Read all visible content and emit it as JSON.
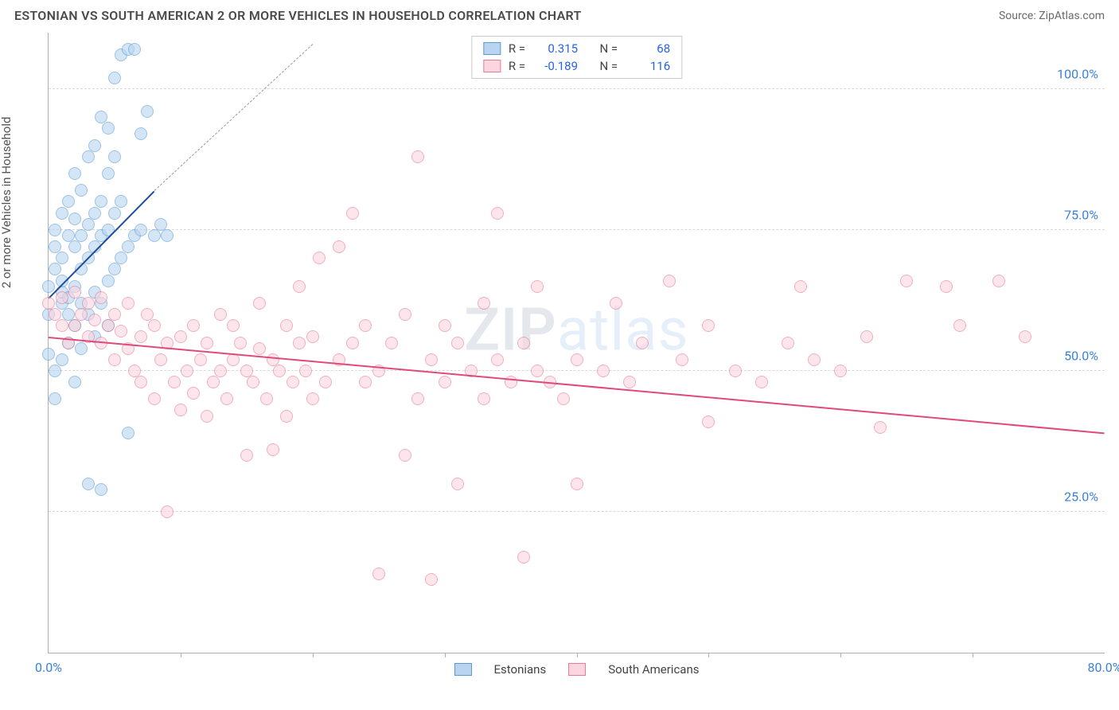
{
  "header": {
    "title": "ESTONIAN VS SOUTH AMERICAN 2 OR MORE VEHICLES IN HOUSEHOLD CORRELATION CHART",
    "source": "Source: ZipAtlas.com"
  },
  "chart": {
    "type": "scatter",
    "y_axis_label": "2 or more Vehicles in Household",
    "background_color": "#ffffff",
    "grid_color": "#d8d8d8",
    "axis_color": "#b0b0b0",
    "tick_label_color": "#3b82d6",
    "tick_fontsize": 16,
    "axis_label_fontsize": 15,
    "xlim": [
      0,
      80
    ],
    "ylim": [
      0,
      110
    ],
    "y_ticks": [
      25,
      50,
      75,
      100
    ],
    "y_tick_labels": [
      "25.0%",
      "50.0%",
      "75.0%",
      "100.0%"
    ],
    "x_ticks_minor": [
      10,
      20,
      30,
      40,
      50,
      60,
      70
    ],
    "x_tick_labels": [
      {
        "x": 0,
        "label": "0.0%"
      },
      {
        "x": 80,
        "label": "80.0%"
      }
    ],
    "watermark": {
      "text_a": "ZIP",
      "text_b": "atlas",
      "opacity": 0.12,
      "fontsize": 74
    },
    "series": [
      {
        "name": "Estonians",
        "color_fill": "#b8d4f0",
        "color_stroke": "#5a9bd5",
        "fill_opacity": 0.6,
        "marker_radius": 8,
        "R": "0.315",
        "N": "68",
        "trend": {
          "x1": 0,
          "y1": 63,
          "x2": 8,
          "y2": 82,
          "color": "#1f4e9c",
          "width": 2.2
        },
        "trend_extrapolate": {
          "x1": 8,
          "y1": 82,
          "x2": 20,
          "y2": 108
        },
        "points": [
          [
            0,
            53
          ],
          [
            0,
            60
          ],
          [
            0,
            65
          ],
          [
            0.5,
            68
          ],
          [
            0.5,
            72
          ],
          [
            0.5,
            75
          ],
          [
            0.5,
            50
          ],
          [
            1,
            62
          ],
          [
            1,
            64
          ],
          [
            1,
            66
          ],
          [
            1,
            70
          ],
          [
            1,
            78
          ],
          [
            1.5,
            55
          ],
          [
            1.5,
            60
          ],
          [
            1.5,
            63
          ],
          [
            1.5,
            74
          ],
          [
            1.5,
            80
          ],
          [
            2,
            58
          ],
          [
            2,
            65
          ],
          [
            2,
            72
          ],
          [
            2,
            77
          ],
          [
            2,
            85
          ],
          [
            2.5,
            62
          ],
          [
            2.5,
            68
          ],
          [
            2.5,
            74
          ],
          [
            2.5,
            82
          ],
          [
            3,
            60
          ],
          [
            3,
            70
          ],
          [
            3,
            76
          ],
          [
            3,
            88
          ],
          [
            3.5,
            64
          ],
          [
            3.5,
            72
          ],
          [
            3.5,
            78
          ],
          [
            3.5,
            90
          ],
          [
            4,
            62
          ],
          [
            4,
            74
          ],
          [
            4,
            80
          ],
          [
            4,
            95
          ],
          [
            4.5,
            66
          ],
          [
            4.5,
            75
          ],
          [
            4.5,
            85
          ],
          [
            4.5,
            93
          ],
          [
            5,
            68
          ],
          [
            5,
            78
          ],
          [
            5,
            88
          ],
          [
            5,
            102
          ],
          [
            5.5,
            70
          ],
          [
            5.5,
            80
          ],
          [
            5.5,
            106
          ],
          [
            6,
            107
          ],
          [
            6,
            72
          ],
          [
            6.5,
            107
          ],
          [
            6.5,
            74
          ],
          [
            7,
            75
          ],
          [
            7,
            92
          ],
          [
            7.5,
            96
          ],
          [
            8,
            74
          ],
          [
            8.5,
            76
          ],
          [
            3,
            30
          ],
          [
            4,
            29
          ],
          [
            6,
            39
          ],
          [
            2,
            48
          ],
          [
            0.5,
            45
          ],
          [
            1,
            52
          ],
          [
            2.5,
            54
          ],
          [
            3.5,
            56
          ],
          [
            4.5,
            58
          ],
          [
            9,
            74
          ]
        ]
      },
      {
        "name": "South Americans",
        "color_fill": "#fbd5df",
        "color_stroke": "#e77a9a",
        "fill_opacity": 0.6,
        "marker_radius": 8,
        "R": "-0.189",
        "N": "116",
        "trend": {
          "x1": 0,
          "y1": 56,
          "x2": 80,
          "y2": 39,
          "color": "#e04a7a",
          "width": 2
        },
        "points": [
          [
            0,
            62
          ],
          [
            0.5,
            60
          ],
          [
            1,
            58
          ],
          [
            1,
            63
          ],
          [
            1.5,
            55
          ],
          [
            2,
            64
          ],
          [
            2,
            58
          ],
          [
            2.5,
            60
          ],
          [
            3,
            56
          ],
          [
            3,
            62
          ],
          [
            3.5,
            59
          ],
          [
            4,
            55
          ],
          [
            4,
            63
          ],
          [
            4.5,
            58
          ],
          [
            5,
            52
          ],
          [
            5,
            60
          ],
          [
            5.5,
            57
          ],
          [
            6,
            54
          ],
          [
            6,
            62
          ],
          [
            6.5,
            50
          ],
          [
            7,
            56
          ],
          [
            7,
            48
          ],
          [
            7.5,
            60
          ],
          [
            8,
            45
          ],
          [
            8,
            58
          ],
          [
            8.5,
            52
          ],
          [
            9,
            25
          ],
          [
            9,
            55
          ],
          [
            9.5,
            48
          ],
          [
            10,
            43
          ],
          [
            10,
            56
          ],
          [
            10.5,
            50
          ],
          [
            11,
            46
          ],
          [
            11,
            58
          ],
          [
            11.5,
            52
          ],
          [
            12,
            42
          ],
          [
            12,
            55
          ],
          [
            12.5,
            48
          ],
          [
            13,
            50
          ],
          [
            13,
            60
          ],
          [
            13.5,
            45
          ],
          [
            14,
            52
          ],
          [
            14,
            58
          ],
          [
            14.5,
            55
          ],
          [
            15,
            35
          ],
          [
            15,
            50
          ],
          [
            15.5,
            48
          ],
          [
            16,
            54
          ],
          [
            16,
            62
          ],
          [
            16.5,
            45
          ],
          [
            17,
            36
          ],
          [
            17,
            52
          ],
          [
            17.5,
            50
          ],
          [
            18,
            42
          ],
          [
            18,
            58
          ],
          [
            18.5,
            48
          ],
          [
            19,
            55
          ],
          [
            19,
            65
          ],
          [
            19.5,
            50
          ],
          [
            20,
            45
          ],
          [
            20,
            56
          ],
          [
            20.5,
            70
          ],
          [
            21,
            48
          ],
          [
            22,
            52
          ],
          [
            22,
            72
          ],
          [
            23,
            55
          ],
          [
            23,
            78
          ],
          [
            24,
            48
          ],
          [
            24,
            58
          ],
          [
            25,
            50
          ],
          [
            25,
            14
          ],
          [
            26,
            55
          ],
          [
            27,
            35
          ],
          [
            27,
            60
          ],
          [
            28,
            45
          ],
          [
            28,
            88
          ],
          [
            29,
            52
          ],
          [
            29,
            13
          ],
          [
            30,
            48
          ],
          [
            30,
            58
          ],
          [
            31,
            55
          ],
          [
            31,
            30
          ],
          [
            32,
            50
          ],
          [
            33,
            45
          ],
          [
            33,
            62
          ],
          [
            34,
            52
          ],
          [
            34,
            78
          ],
          [
            35,
            48
          ],
          [
            36,
            17
          ],
          [
            36,
            55
          ],
          [
            37,
            50
          ],
          [
            37,
            65
          ],
          [
            38,
            48
          ],
          [
            39,
            45
          ],
          [
            40,
            52
          ],
          [
            40,
            30
          ],
          [
            42,
            50
          ],
          [
            43,
            62
          ],
          [
            44,
            48
          ],
          [
            45,
            55
          ],
          [
            47,
            66
          ],
          [
            48,
            52
          ],
          [
            50,
            58
          ],
          [
            50,
            41
          ],
          [
            52,
            50
          ],
          [
            54,
            48
          ],
          [
            56,
            55
          ],
          [
            57,
            65
          ],
          [
            58,
            52
          ],
          [
            60,
            50
          ],
          [
            62,
            56
          ],
          [
            63,
            40
          ],
          [
            65,
            66
          ],
          [
            68,
            65
          ],
          [
            69,
            58
          ],
          [
            72,
            66
          ],
          [
            74,
            56
          ]
        ]
      }
    ],
    "legend_top": {
      "border_color": "#c9c9c9",
      "R_label": "R =",
      "N_label": "N ="
    },
    "legend_bottom": {
      "series_a": "Estonians",
      "series_b": "South Americans"
    }
  }
}
